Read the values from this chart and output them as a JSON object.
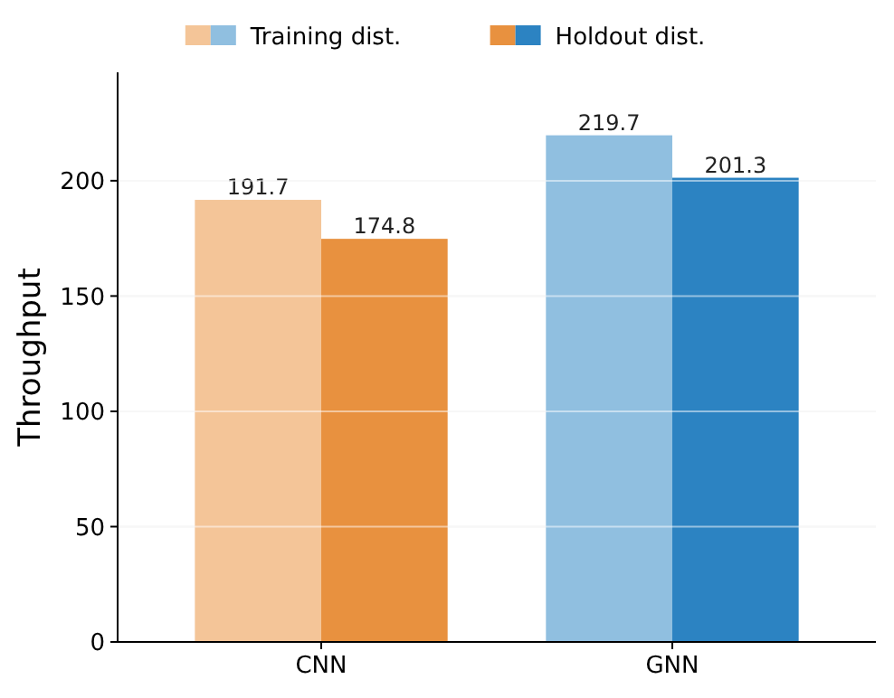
{
  "chart_data": {
    "type": "bar",
    "ylabel": "Throughput",
    "categories": [
      "CNN",
      "GNN"
    ],
    "series": [
      {
        "name": "Training dist.",
        "colors": [
          "#f4c598",
          "#90bfe0"
        ],
        "values": [
          191.7,
          219.7
        ]
      },
      {
        "name": "Holdout dist.",
        "colors": [
          "#e8913f",
          "#2c83c2"
        ],
        "values": [
          174.8,
          201.3
        ]
      }
    ],
    "ylim": [
      0,
      247
    ],
    "yticks": [
      0,
      50,
      100,
      150,
      200
    ],
    "grid": "y",
    "legend": "top",
    "data_labels": true
  }
}
